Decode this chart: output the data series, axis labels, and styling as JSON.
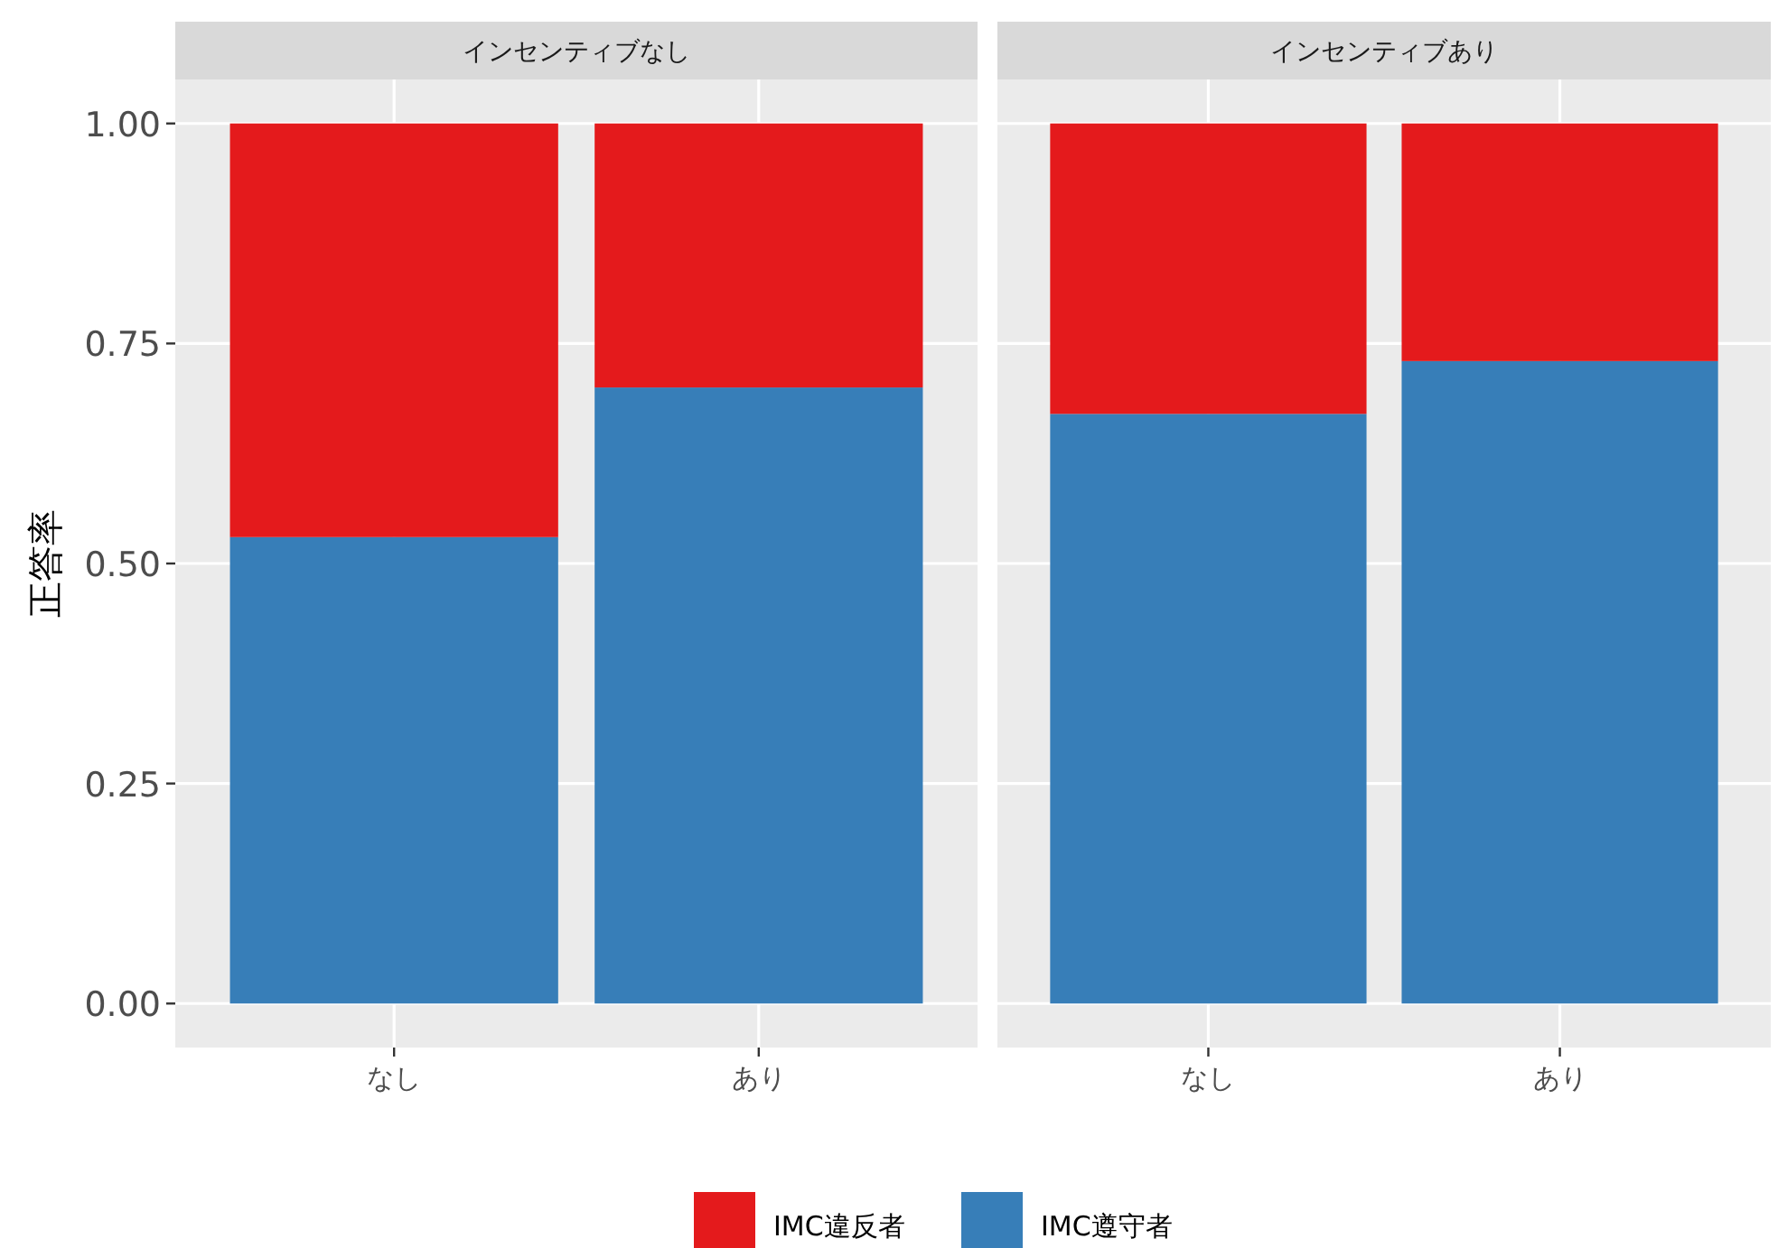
{
  "chart_data": [
    {
      "type": "bar",
      "title": "インセンティブなし",
      "ylabel": "正答率",
      "categories": [
        "なし",
        "あり"
      ],
      "stacked": true,
      "ylim": [
        -0.05,
        1.05
      ],
      "yticks": [
        {
          "value": 0,
          "label": "0.00"
        },
        {
          "value": 0.25,
          "label": "0.25"
        },
        {
          "value": 0.5,
          "label": "0.50"
        },
        {
          "value": 0.75,
          "label": "0.75"
        },
        {
          "value": 1,
          "label": "1.00"
        }
      ],
      "grid": true,
      "legend": "bottom",
      "series": [
        {
          "name": "IMC遵守者",
          "color": "#377eb8",
          "values": [
            0.53,
            0.7
          ]
        },
        {
          "name": "IMC違反者",
          "color": "#e41a1c",
          "values": [
            0.47,
            0.3
          ]
        }
      ]
    },
    {
      "type": "bar",
      "title": "インセンティブあり",
      "categories": [
        "なし",
        "あり"
      ],
      "stacked": true,
      "ylim": [
        -0.05,
        1.05
      ],
      "yticks": [
        {
          "value": 0,
          "label": null
        },
        {
          "value": 0.25,
          "label": null
        },
        {
          "value": 0.5,
          "label": null
        },
        {
          "value": 0.75,
          "label": null
        },
        {
          "value": 1,
          "label": null
        }
      ],
      "tick_labels": "x",
      "grid": true,
      "legend": "bottom",
      "series": [
        {
          "name": "IMC遵守者",
          "color": "#377eb8",
          "values": [
            0.67,
            0.73
          ]
        },
        {
          "name": "IMC違反者",
          "color": "#e41a1c",
          "values": [
            0.33,
            0.27
          ]
        }
      ]
    }
  ]
}
